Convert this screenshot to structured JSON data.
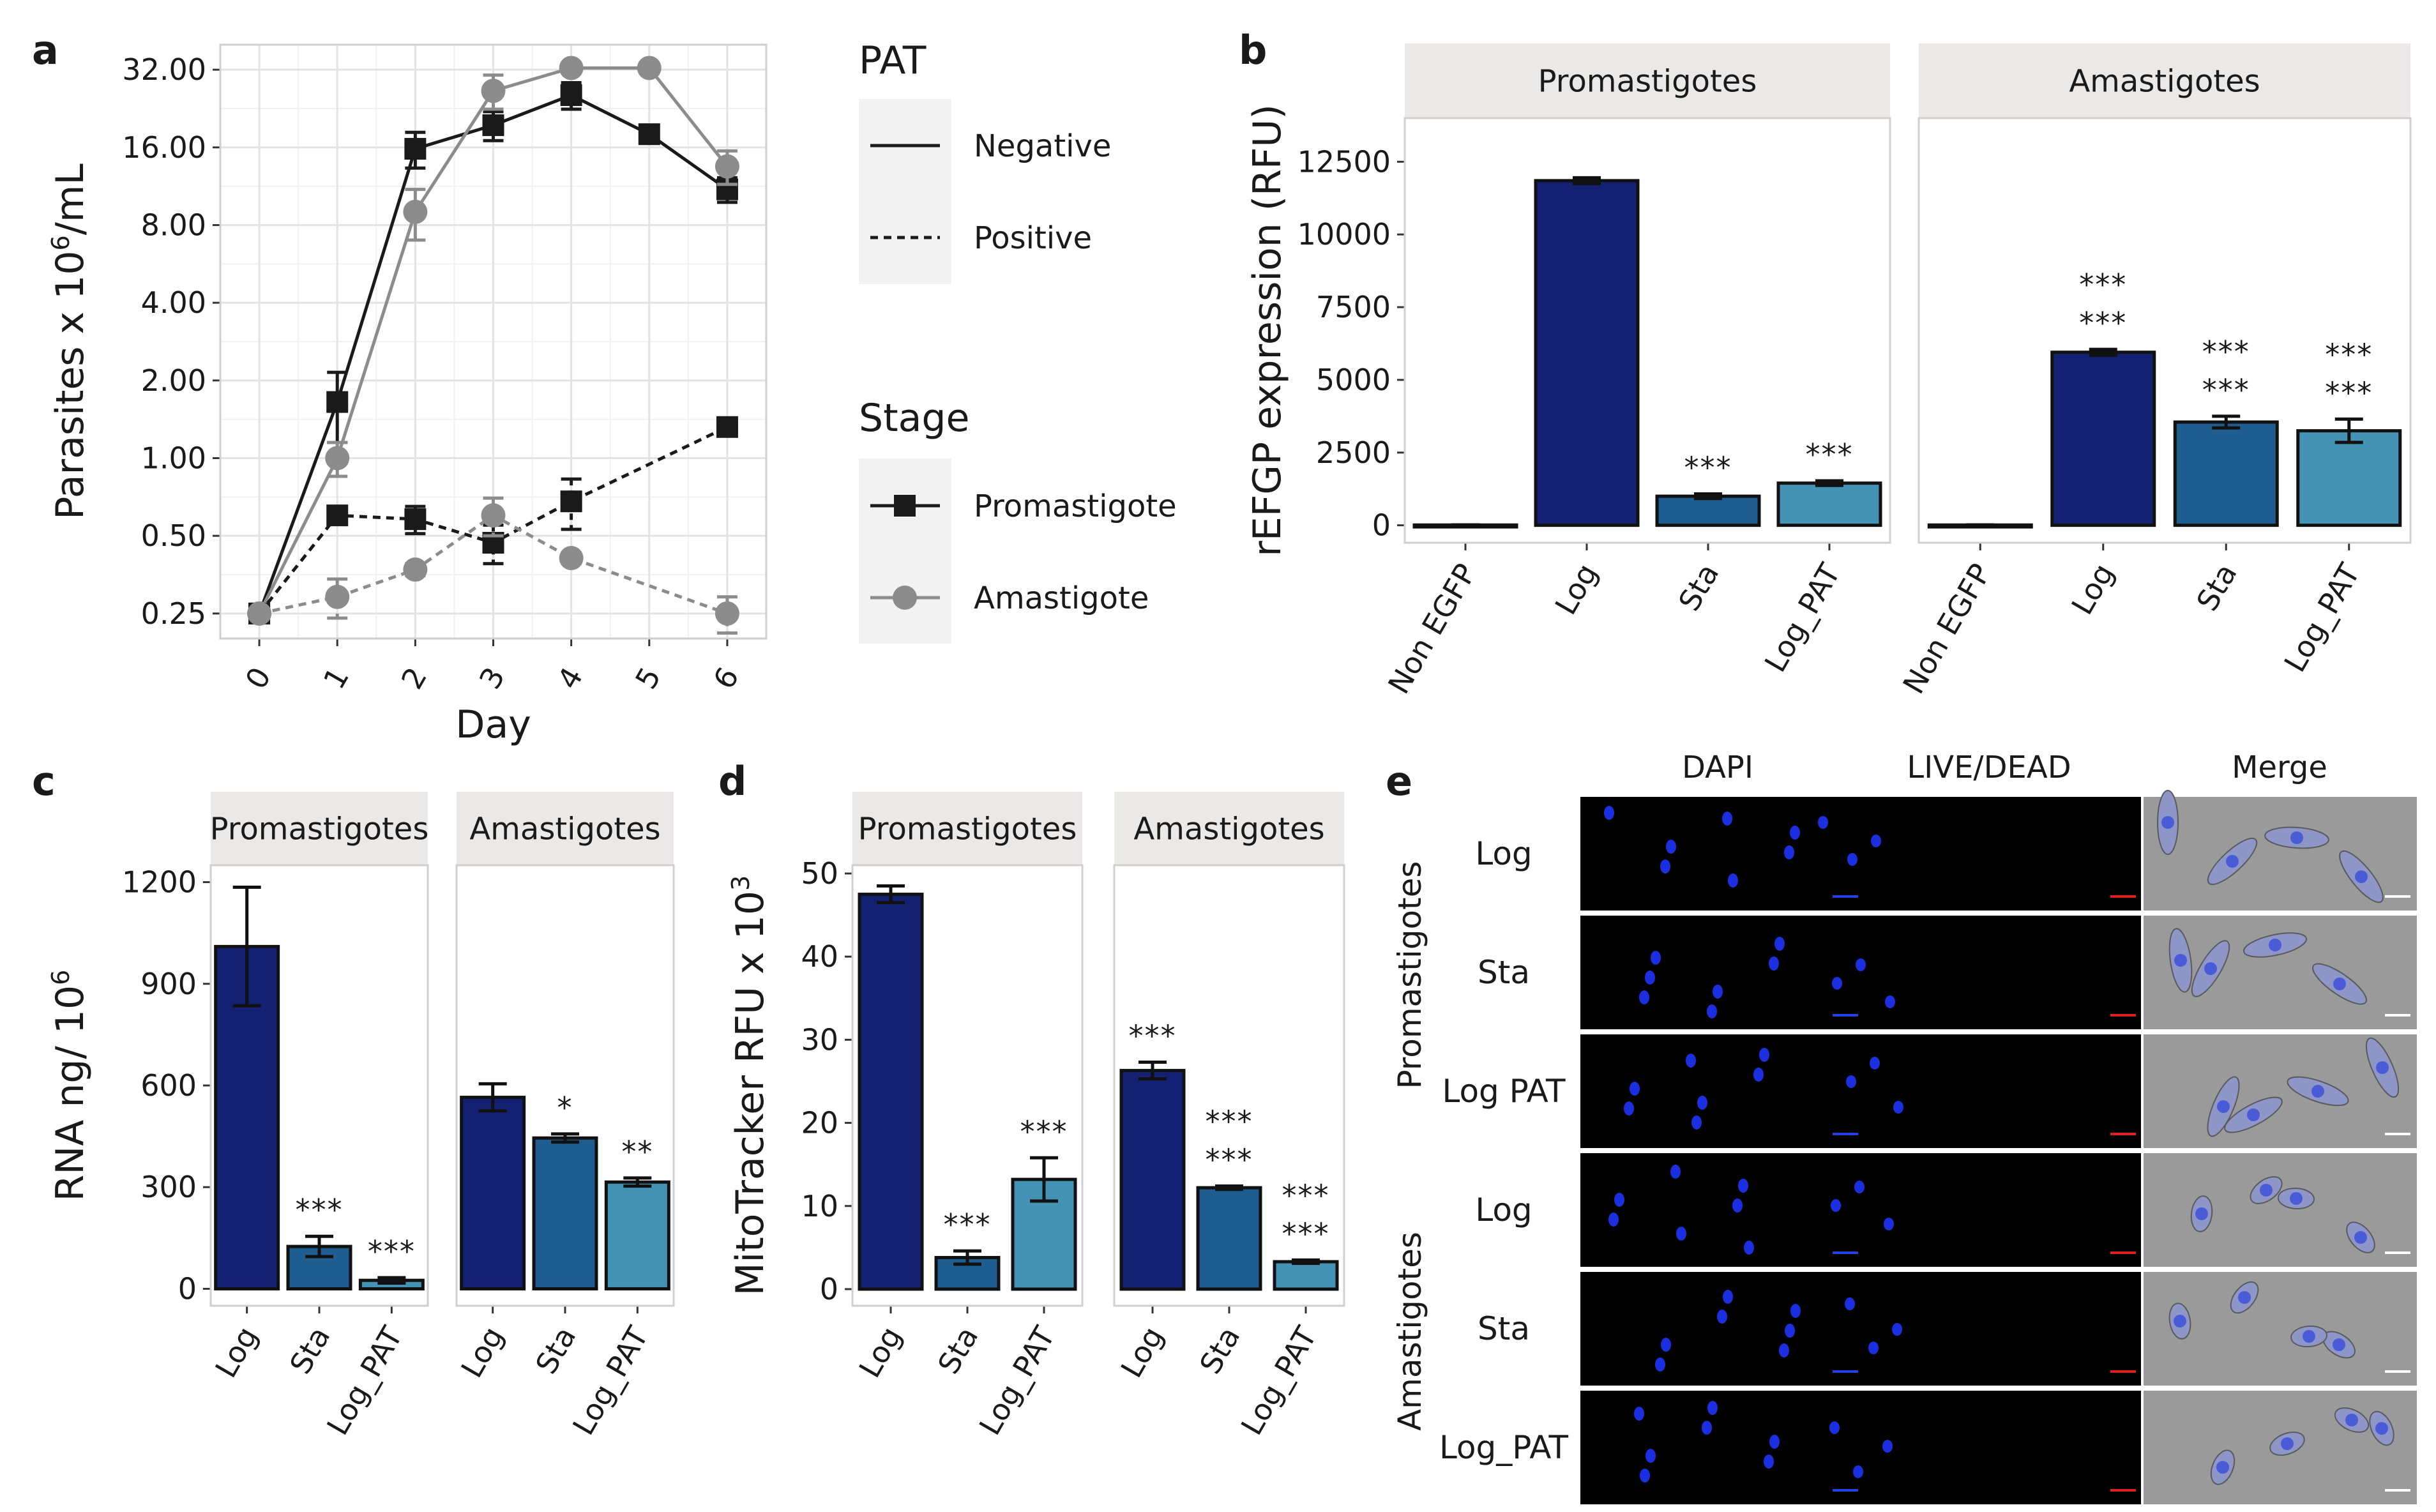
{
  "panel_letters": {
    "a": "a",
    "b": "b",
    "c": "c",
    "d": "d",
    "e": "e"
  },
  "colors": {
    "promastigote_line": "#1a1a1a",
    "amastigote_line": "#8c8c8c",
    "sig_black": "#222222",
    "sig_red": "#c0392b",
    "strip_bg": "#ebe9e7",
    "cond_colors": {
      "Non EGFP": "#10186b",
      "Log": "#142072",
      "Sta": "#1f5c8f",
      "Log_PAT": "#4493b4"
    }
  },
  "chart_data": [
    {
      "id": "a",
      "type": "line",
      "xlabel": "Day",
      "ylabel_parts": {
        "pre": "Parasites x 10",
        "sup": "6",
        "post": "/mL"
      },
      "x": [
        0,
        1,
        2,
        3,
        4,
        5,
        6
      ],
      "x_tick_labels": [
        "0",
        "1",
        "2",
        "3",
        "4",
        "5",
        "6"
      ],
      "y_scale": "log2",
      "ylim": [
        0.2,
        40
      ],
      "y_ticks": [
        0.25,
        0.5,
        1,
        2,
        4,
        8,
        16,
        32
      ],
      "y_tick_labels": [
        "0.25",
        "0.50",
        "1.00",
        "2.00",
        "4.00",
        "8.00",
        "16.00",
        "32.00"
      ],
      "legend": {
        "pat_title": "PAT",
        "pat_items": [
          "Negative",
          "Positive"
        ],
        "stage_title": "Stage",
        "stage_items": [
          "Promastigote",
          "Amastigote"
        ]
      },
      "series": [
        {
          "name": "Promastigote / Negative",
          "stage": "Promastigote",
          "pat": "Negative",
          "x": [
            0,
            1,
            2,
            3,
            4,
            5,
            6
          ],
          "values": [
            0.25,
            1.65,
            15.8,
            19.5,
            25.5,
            18.0,
            11.0
          ],
          "err": [
            0.01,
            0.5,
            2.5,
            2.5,
            3.0,
            1.2,
            1.2
          ]
        },
        {
          "name": "Amastigote / Negative",
          "stage": "Amastigote",
          "pat": "Negative",
          "x": [
            0,
            1,
            2,
            3,
            4,
            5,
            6
          ],
          "values": [
            0.25,
            1.0,
            9.0,
            26.5,
            32.5,
            32.5,
            13.5
          ],
          "err": [
            0.01,
            0.15,
            2.0,
            4.0,
            1.5,
            1.5,
            2.0
          ]
        },
        {
          "name": "Promastigote / Positive",
          "stage": "Promastigote",
          "pat": "Positive",
          "x": [
            0,
            1,
            2,
            3,
            4,
            6
          ],
          "values": [
            0.25,
            0.6,
            0.58,
            0.47,
            0.68,
            1.32
          ],
          "err": [
            0.01,
            0.03,
            0.07,
            0.08,
            0.15,
            0.04
          ]
        },
        {
          "name": "Amastigote / Positive",
          "stage": "Amastigote",
          "pat": "Positive",
          "x": [
            0,
            1,
            2,
            3,
            4,
            6
          ],
          "values": [
            0.25,
            0.29,
            0.37,
            0.6,
            0.41,
            0.25
          ],
          "err": [
            0.01,
            0.05,
            0.02,
            0.1,
            0.02,
            0.04
          ]
        }
      ]
    },
    {
      "id": "b",
      "type": "bar",
      "ylabel": "rEFGP expression (RFU)",
      "ylim": [
        -600,
        14000
      ],
      "y_ticks": [
        0,
        2500,
        5000,
        7500,
        10000,
        12500
      ],
      "y_tick_labels": [
        "0",
        "2500",
        "5000",
        "7500",
        "10000",
        "12500"
      ],
      "facets": [
        {
          "strip": "Promastigotes",
          "categories": [
            "Non EGFP",
            "Log",
            "Sta",
            "Log_PAT"
          ],
          "values": [
            10,
            11850,
            1000,
            1450
          ],
          "err": [
            5,
            100,
            80,
            80
          ],
          "sig_black": [
            "",
            "",
            "***",
            "***"
          ],
          "sig_red": [
            "",
            "",
            "",
            ""
          ]
        },
        {
          "strip": "Amastigotes",
          "categories": [
            "Non EGFP",
            "Log",
            "Sta",
            "Log_PAT"
          ],
          "values": [
            10,
            5950,
            3550,
            3250
          ],
          "err": [
            5,
            100,
            200,
            400
          ],
          "sig_black": [
            "",
            "***",
            "***",
            "***"
          ],
          "sig_red": [
            "",
            "***",
            "***",
            "***"
          ]
        }
      ]
    },
    {
      "id": "c",
      "type": "bar",
      "ylabel_parts": {
        "pre": "RNA ng/ 10",
        "sup": "6",
        "post": ""
      },
      "ylim": [
        -50,
        1250
      ],
      "y_ticks": [
        0,
        300,
        600,
        900,
        1200
      ],
      "y_tick_labels": [
        "0",
        "300",
        "600",
        "900",
        "1200"
      ],
      "facets": [
        {
          "strip": "Promastigotes",
          "categories": [
            "Log",
            "Sta",
            "Log_PAT"
          ],
          "values": [
            1010,
            125,
            25
          ],
          "err": [
            175,
            30,
            8
          ],
          "sig_black": [
            "",
            "***",
            "***"
          ],
          "sig_red": [
            "",
            "",
            ""
          ]
        },
        {
          "strip": "Amastigotes",
          "categories": [
            "Log",
            "Sta",
            "Log_PAT"
          ],
          "values": [
            565,
            445,
            315
          ],
          "err": [
            40,
            12,
            12
          ],
          "sig_black": [
            "",
            "*",
            "**"
          ],
          "sig_red": [
            "",
            "",
            ""
          ]
        }
      ]
    },
    {
      "id": "d",
      "type": "bar",
      "ylabel_parts": {
        "pre": "MitoTracker RFU x 10",
        "sup": "3",
        "post": ""
      },
      "ylim": [
        -2,
        51
      ],
      "y_ticks": [
        0,
        10,
        20,
        30,
        40,
        50
      ],
      "y_tick_labels": [
        "0",
        "10",
        "20",
        "30",
        "40",
        "50"
      ],
      "facets": [
        {
          "strip": "Promastigotes",
          "categories": [
            "Log",
            "Sta",
            "Log_PAT"
          ],
          "values": [
            47.5,
            3.8,
            13.2
          ],
          "err": [
            1.0,
            0.8,
            2.6
          ],
          "sig_black": [
            "",
            "***",
            "***"
          ],
          "sig_red": [
            "",
            "",
            ""
          ]
        },
        {
          "strip": "Amastigotes",
          "categories": [
            "Log",
            "Sta",
            "Log_PAT"
          ],
          "values": [
            26.3,
            12.2,
            3.3
          ],
          "err": [
            1.0,
            0.2,
            0.2
          ],
          "sig_black": [
            "***",
            "***",
            "***"
          ],
          "sig_red": [
            "",
            "***",
            "***"
          ]
        }
      ]
    }
  ],
  "microscopy": {
    "columns": [
      "DAPI",
      "LIVE/DEAD",
      "Merge"
    ],
    "group_labels": [
      "Promastigotes",
      "Amastigotes"
    ],
    "rows": [
      "Log",
      "Sta",
      "Log PAT",
      "Log",
      "Sta",
      "Log_PAT"
    ]
  }
}
